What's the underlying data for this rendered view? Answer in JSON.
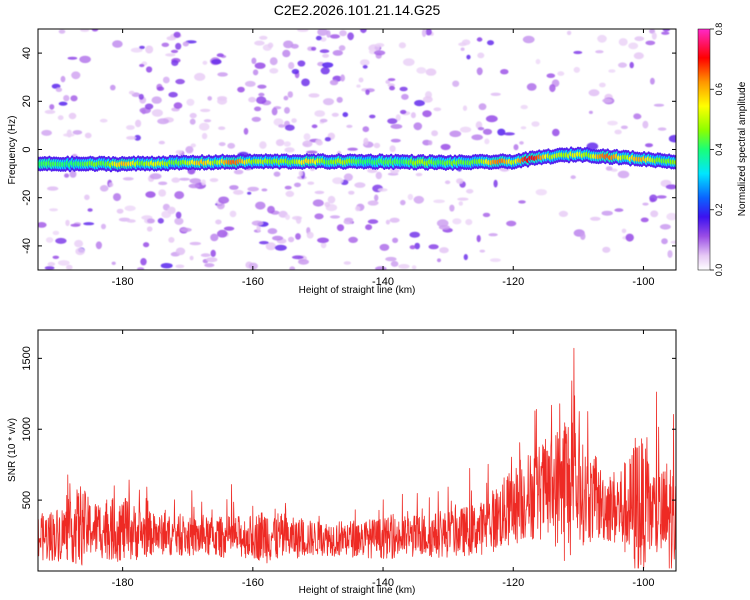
{
  "title": "C2E2.2026.101.21.14.G25",
  "chart_data": [
    {
      "type": "heatmap",
      "title": "C2E2.2026.101.21.14.G25",
      "xlabel": "Height of straight line (km)",
      "ylabel": "Frequency (Hz)",
      "xlim": [
        -193,
        -95
      ],
      "ylim": [
        -50,
        50
      ],
      "x_ticks": [
        -180,
        -160,
        -140,
        -120,
        -100
      ],
      "y_ticks": [
        -40,
        -20,
        0,
        20,
        40
      ],
      "colorbar": {
        "label": "Normalized spectral amplitude",
        "range": [
          0,
          0.8
        ],
        "ticks": [
          0,
          0.2,
          0.4,
          0.6,
          0.8
        ],
        "colors": [
          "#ffffff",
          "#e6c8f5",
          "#9a4de6",
          "#3c12f0",
          "#0a64ff",
          "#00e6ff",
          "#19ff78",
          "#8cff00",
          "#ffff00",
          "#ff9600",
          "#ff0000",
          "#ff28c8"
        ]
      },
      "ridge": {
        "description_values": "main signal band frequency (Hz) vs height (km)",
        "x": [
          -193,
          -180,
          -160,
          -140,
          -130,
          -120,
          -115,
          -110,
          -105,
          -100,
          -95
        ],
        "freq": [
          -6,
          -6,
          -5,
          -5,
          -5.5,
          -5,
          -3,
          -2,
          -3,
          -4,
          -5
        ],
        "peak_amplitude": [
          0.45,
          0.62,
          0.7,
          0.5,
          0.55,
          0.75,
          0.78,
          0.7,
          0.68,
          0.72,
          0.6
        ]
      }
    },
    {
      "type": "line",
      "xlabel": "Height of straight line (km)",
      "ylabel": "SNR (10 * v/v)",
      "xlim": [
        -193,
        -95
      ],
      "ylim": [
        0,
        1700
      ],
      "x_ticks": [
        -180,
        -160,
        -140,
        -120,
        -100
      ],
      "y_ticks": [
        500,
        1000,
        1500
      ],
      "color": "#ee2a24",
      "envelope": {
        "x": [
          -193,
          -188,
          -186.5,
          -185,
          -180,
          -178,
          -175,
          -170,
          -160,
          -157.5,
          -155,
          -150,
          -140,
          -130,
          -125,
          -121,
          -118,
          -116,
          -114,
          -112.5,
          -112,
          -110,
          -107,
          -105,
          -102,
          -101,
          -99,
          -97,
          -96,
          -95
        ],
        "base": [
          230,
          280,
          320,
          300,
          290,
          270,
          260,
          240,
          240,
          260,
          230,
          230,
          230,
          260,
          300,
          420,
          520,
          560,
          580,
          600,
          620,
          560,
          480,
          450,
          440,
          480,
          420,
          380,
          360,
          340
        ],
        "amp": [
          300,
          380,
          560,
          360,
          420,
          360,
          260,
          250,
          280,
          380,
          280,
          220,
          260,
          300,
          340,
          480,
          560,
          620,
          700,
          900,
          1080,
          700,
          500,
          460,
          680,
          1050,
          620,
          620,
          900,
          520
        ]
      }
    }
  ]
}
